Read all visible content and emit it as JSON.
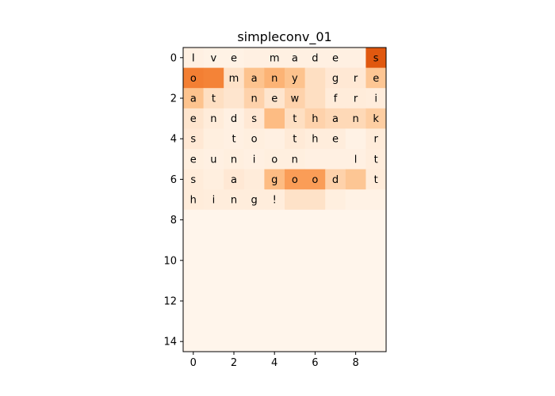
{
  "chart_data": {
    "type": "heatmap",
    "title": "simpleconv_01",
    "colormap": "Oranges",
    "rows": 15,
    "cols": 10,
    "xticks": [
      "0",
      "2",
      "4",
      "6",
      "8"
    ],
    "yticks": [
      "0",
      "2",
      "4",
      "6",
      "8",
      "10",
      "12",
      "14"
    ],
    "cell_text": [
      [
        "I",
        "v",
        "e",
        "",
        "m",
        "a",
        "d",
        "e",
        "",
        "s"
      ],
      [
        "o",
        "",
        "m",
        "a",
        "n",
        "y",
        "",
        "g",
        "r",
        "e"
      ],
      [
        "a",
        "t",
        "",
        "n",
        "e",
        "w",
        "",
        "f",
        "r",
        "i"
      ],
      [
        "e",
        "n",
        "d",
        "s",
        "",
        "t",
        "h",
        "a",
        "n",
        "k"
      ],
      [
        "s",
        "",
        "t",
        "o",
        "",
        "t",
        "h",
        "e",
        "",
        "r"
      ],
      [
        "e",
        "u",
        "n",
        "i",
        "o",
        "n",
        "",
        "",
        "l",
        "t"
      ],
      [
        "s",
        "",
        "a",
        "",
        "g",
        "o",
        "o",
        "d",
        "",
        "t"
      ],
      [
        "h",
        "i",
        "n",
        "g",
        "!",
        "",
        "",
        "",
        "",
        ""
      ]
    ],
    "values": [
      [
        0.03,
        0.02,
        0.02,
        0.03,
        0.03,
        0.03,
        0.03,
        0.03,
        0.03,
        0.92
      ],
      [
        0.72,
        0.7,
        0.12,
        0.32,
        0.42,
        0.32,
        0.14,
        0.08,
        0.08,
        0.3
      ],
      [
        0.32,
        0.14,
        0.1,
        0.22,
        0.1,
        0.22,
        0.14,
        0.06,
        0.06,
        0.05
      ],
      [
        0.1,
        0.06,
        0.03,
        0.08,
        0.36,
        0.14,
        0.22,
        0.18,
        0.18,
        0.25
      ],
      [
        0.08,
        0.04,
        0.03,
        0.04,
        0.03,
        0.07,
        0.05,
        0.05,
        0.02,
        0.06
      ],
      [
        0.04,
        0.03,
        0.04,
        0.03,
        0.04,
        0.04,
        0.03,
        0.03,
        0.03,
        0.05
      ],
      [
        0.06,
        0.04,
        0.08,
        0.06,
        0.36,
        0.55,
        0.55,
        0.22,
        0.3,
        0.06
      ],
      [
        0.06,
        0.05,
        0.05,
        0.05,
        0.05,
        0.12,
        0.12,
        0.04,
        0.02,
        0.02
      ],
      [
        0,
        0,
        0,
        0,
        0,
        0,
        0,
        0,
        0,
        0
      ],
      [
        0,
        0,
        0,
        0,
        0,
        0,
        0,
        0,
        0,
        0
      ],
      [
        0,
        0,
        0,
        0,
        0,
        0,
        0,
        0,
        0,
        0
      ],
      [
        0,
        0,
        0,
        0,
        0,
        0,
        0,
        0,
        0,
        0
      ],
      [
        0,
        0,
        0,
        0,
        0,
        0,
        0,
        0,
        0,
        0
      ],
      [
        0,
        0,
        0,
        0,
        0,
        0,
        0,
        0,
        0,
        0
      ],
      [
        0,
        0,
        0,
        0,
        0,
        0,
        0,
        0,
        0,
        0
      ]
    ],
    "colors": {
      "low": "#fff5eb",
      "high": "#d94801",
      "text": "#000000",
      "axis": "#000000"
    }
  }
}
